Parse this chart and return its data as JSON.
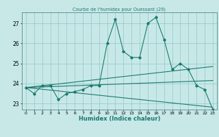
{
  "title": "Courbe de l'humidex pour Ouessant (29)",
  "xlabel": "Humidex (Indice chaleur)",
  "bg_color": "#c8e8e8",
  "grid_color": "#99cccc",
  "line_color": "#1a7a6e",
  "xlim": [
    -0.5,
    23.5
  ],
  "ylim": [
    22.7,
    27.55
  ],
  "yticks": [
    23,
    24,
    25,
    26,
    27
  ],
  "xticks": [
    0,
    1,
    2,
    3,
    4,
    5,
    6,
    7,
    8,
    9,
    10,
    11,
    12,
    13,
    14,
    15,
    16,
    17,
    18,
    19,
    20,
    21,
    22,
    23
  ],
  "line1_x": [
    0,
    1,
    2,
    3,
    4,
    5,
    6,
    7,
    8,
    9,
    10,
    11,
    12,
    13,
    14,
    15,
    16,
    17,
    18,
    19,
    20,
    21,
    22,
    23
  ],
  "line1_y": [
    23.8,
    23.5,
    23.9,
    23.9,
    23.2,
    23.5,
    23.6,
    23.7,
    23.9,
    23.9,
    26.0,
    27.2,
    25.6,
    25.3,
    25.3,
    27.0,
    27.3,
    26.2,
    24.7,
    25.0,
    24.7,
    23.9,
    23.7,
    22.7
  ],
  "line2_x": [
    0,
    23
  ],
  "line2_y": [
    23.8,
    24.15
  ],
  "line3_x": [
    0,
    23
  ],
  "line3_y": [
    23.8,
    24.85
  ],
  "line4_x": [
    0,
    23
  ],
  "line4_y": [
    23.8,
    22.82
  ]
}
